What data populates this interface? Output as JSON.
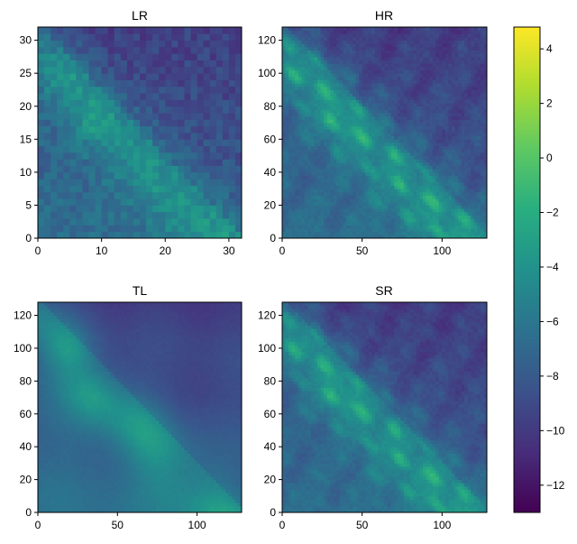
{
  "chart_data": {
    "type": "heatmap",
    "colormap": "viridis",
    "colorbar": {
      "vmin": -13.0,
      "vmax": 4.8,
      "ticks": [
        4,
        2,
        0,
        -2,
        -4,
        -6,
        -8,
        -10,
        -12
      ],
      "tick_labels": [
        "4",
        "2",
        "0",
        "−2",
        "−4",
        "−6",
        "−8",
        "−10",
        "−12"
      ]
    },
    "panels": [
      {
        "id": "lr",
        "title": "LR",
        "grid": 32,
        "xlim": [
          0,
          32
        ],
        "ylim": [
          0,
          32
        ],
        "xticks": [
          0,
          10,
          20,
          30
        ],
        "yticks": [
          0,
          5,
          10,
          15,
          20,
          25,
          30
        ],
        "noise": 2.2,
        "detail": 0.0,
        "smooth": 0.0
      },
      {
        "id": "hr",
        "title": "HR",
        "grid": 128,
        "xlim": [
          0,
          128
        ],
        "ylim": [
          0,
          128
        ],
        "xticks": [
          0,
          50,
          100
        ],
        "yticks": [
          0,
          20,
          40,
          60,
          80,
          100,
          120
        ],
        "noise": 0.9,
        "detail": 1.0,
        "smooth": 0.0
      },
      {
        "id": "tl",
        "title": "TL",
        "grid": 128,
        "xlim": [
          0,
          128
        ],
        "ylim": [
          0,
          128
        ],
        "xticks": [
          0,
          50,
          100
        ],
        "yticks": [
          0,
          20,
          40,
          60,
          80,
          100,
          120
        ],
        "noise": 0.3,
        "detail": 0.0,
        "smooth": 1.0
      },
      {
        "id": "sr",
        "title": "SR",
        "grid": 128,
        "xlim": [
          0,
          128
        ],
        "ylim": [
          0,
          128
        ],
        "xticks": [
          0,
          50,
          100
        ],
        "yticks": [
          0,
          20,
          40,
          60,
          80,
          100,
          120
        ],
        "noise": 0.8,
        "detail": 0.9,
        "smooth": 0.0
      }
    ]
  }
}
